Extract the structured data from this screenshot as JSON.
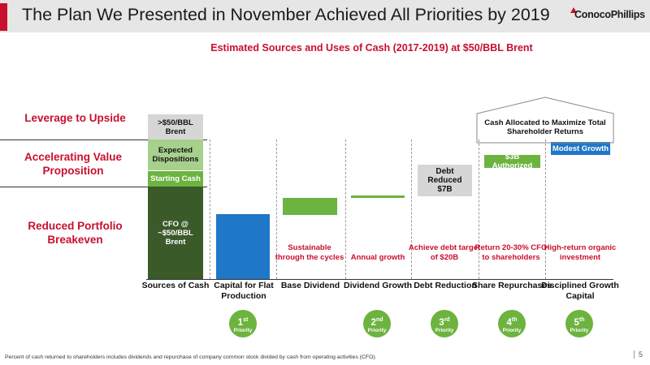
{
  "header": {
    "title": "The Plan We Presented in November Achieved All Priorities by 2019",
    "logo": "ConocoPhillips"
  },
  "subtitle": "Estimated Sources and Uses of Cash (2017-2019) at $50/BBL Brent",
  "row_labels": [
    "Leverage to Upside",
    "Accelerating Value Proposition",
    "Reduced Portfolio Breakeven"
  ],
  "sources_column": {
    "segments": [
      {
        "label": "CFO @ ~$50/BBL Brent",
        "color": "#3a5a2a"
      },
      {
        "label": "Starting Cash",
        "color": "#6cb33f"
      },
      {
        "label": "Expected Dispositions",
        "color": "#a8d08d"
      },
      {
        "label": ">$50/BBL Brent",
        "color": "#d6d6d6"
      }
    ]
  },
  "bracket_label": "Cash Allocated to Maximize Total Shareholder Returns",
  "chart_data": {
    "type": "bar",
    "title": "Estimated Sources and Uses of Cash (2017-2019) at $50/BBL Brent",
    "categories": [
      "Sources of Cash",
      "Capital for Flat Production",
      "Base Dividend",
      "Dividend Growth",
      "Debt Reduction",
      "Share Repurchases",
      "Disciplined Growth Capital"
    ],
    "bars": [
      {
        "category": "Capital for Flat Production",
        "color": "#1f77c8",
        "bar_label": ""
      },
      {
        "category": "Base Dividend",
        "color": "#6cb33f",
        "bar_label": ""
      },
      {
        "category": "Dividend Growth",
        "color": "#6cb33f",
        "bar_label": ""
      },
      {
        "category": "Debt Reduction",
        "color": "#d6d6d6",
        "bar_label": "Debt Reduced $7B"
      },
      {
        "category": "Share Repurchases",
        "color": "#6cb33f",
        "bar_label": "$3B Authorized"
      },
      {
        "category": "Disciplined Growth Capital",
        "color": "#1f77c8",
        "bar_label": "Modest Growth"
      }
    ],
    "notes": [
      "Sustainable through the cycles",
      "Annual growth",
      "Achieve debt target of $20B",
      "Return 20-30% CFO to shareholders",
      "High-return organic investment"
    ],
    "priorities": [
      {
        "category": "Dividend Growth",
        "num": "2",
        "suffix": "nd",
        "label": "Priority"
      },
      {
        "category": "Debt Reduction",
        "num": "3",
        "suffix": "rd",
        "label": "Priority"
      },
      {
        "category": "Share Repurchases",
        "num": "4",
        "suffix": "th",
        "label": "Priority"
      },
      {
        "category": "Disciplined Growth Capital",
        "num": "5",
        "suffix": "th",
        "label": "Priority"
      },
      {
        "category": "Capital for Flat Production",
        "num": "1",
        "suffix": "st",
        "label": "Priority"
      }
    ]
  },
  "footnote": "Percent of cash returned to shareholders includes dividends and repurchase of company common stock divided by cash from operating activities (CFO).",
  "page_number": "5"
}
